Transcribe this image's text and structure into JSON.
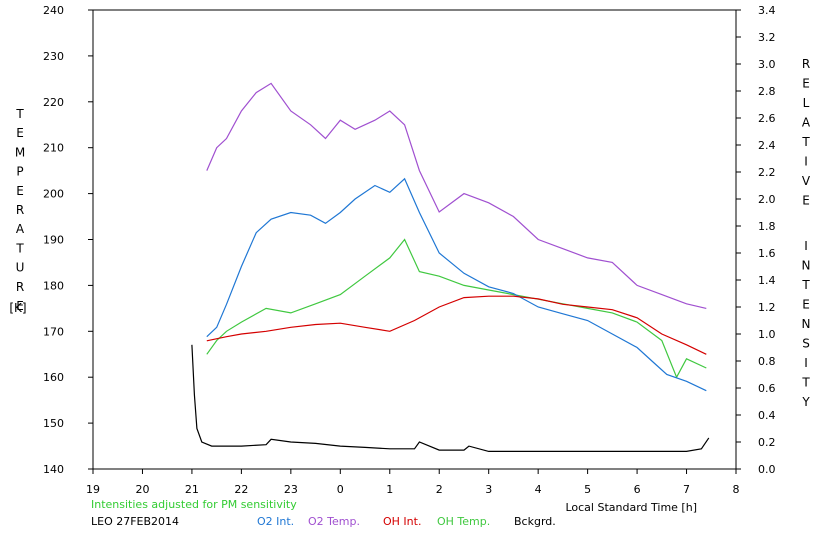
{
  "chart_data": {
    "type": "line",
    "xlabel": "Local Standard Time [h]",
    "ylabel_left": "TEMPERATURE",
    "ylabel_left_unit": "[K]",
    "ylabel_right": "RELATIVE INTENSITY",
    "x_ticks": [
      "19",
      "20",
      "21",
      "22",
      "23",
      "0",
      "1",
      "2",
      "3",
      "4",
      "5",
      "6",
      "7",
      "8"
    ],
    "xlim": [
      19,
      32
    ],
    "ylim_left": [
      140,
      240
    ],
    "y_ticks_left": [
      "140",
      "150",
      "160",
      "170",
      "180",
      "190",
      "200",
      "210",
      "220",
      "230",
      "240"
    ],
    "ylim_right": [
      0.0,
      3.4
    ],
    "y_ticks_right": [
      "0.0",
      "0.2",
      "0.4",
      "0.6",
      "0.8",
      "1.0",
      "1.2",
      "1.4",
      "1.6",
      "1.8",
      "2.0",
      "2.2",
      "2.4",
      "2.6",
      "2.8",
      "3.0",
      "3.2",
      "3.4"
    ],
    "note": "Intensities adjusted for PM sensitivity",
    "station_label": "LEO 27FEB2014",
    "grid": false,
    "legend_position": "bottom",
    "colors": {
      "o2_int": "#1f77d4",
      "o2_temp": "#a050d0",
      "oh_int": "#d40000",
      "oh_temp": "#40c840",
      "bckgrd": "#000000",
      "note": "#33cc33"
    },
    "series": [
      {
        "name": "O2 Int.",
        "axis": "right",
        "x": [
          21.3,
          21.5,
          21.7,
          22.0,
          22.3,
          22.6,
          23.0,
          23.4,
          23.7,
          24.0,
          24.3,
          24.7,
          25.0,
          25.3,
          25.6,
          26.0,
          26.5,
          27.0,
          27.5,
          28.0,
          28.5,
          29.0,
          29.5,
          30.0,
          30.3,
          30.6,
          31.0,
          31.4
        ],
        "values": [
          0.98,
          1.05,
          1.22,
          1.5,
          1.75,
          1.85,
          1.9,
          1.88,
          1.82,
          1.9,
          2.0,
          2.1,
          2.05,
          2.15,
          1.9,
          1.6,
          1.45,
          1.35,
          1.3,
          1.2,
          1.15,
          1.1,
          1.0,
          0.9,
          0.8,
          0.7,
          0.65,
          0.58
        ]
      },
      {
        "name": "O2 Temp.",
        "axis": "left",
        "x": [
          21.3,
          21.5,
          21.7,
          22.0,
          22.3,
          22.6,
          23.0,
          23.4,
          23.7,
          24.0,
          24.3,
          24.7,
          25.0,
          25.3,
          25.6,
          26.0,
          26.5,
          27.0,
          27.5,
          28.0,
          28.5,
          29.0,
          29.5,
          30.0,
          30.5,
          31.0,
          31.4
        ],
        "values": [
          205,
          210,
          212,
          218,
          222,
          224,
          218,
          215,
          212,
          216,
          214,
          216,
          218,
          215,
          205,
          196,
          200,
          198,
          195,
          190,
          188,
          186,
          185,
          180,
          178,
          176,
          175
        ]
      },
      {
        "name": "OH Int.",
        "axis": "right",
        "x": [
          21.3,
          21.7,
          22.0,
          22.5,
          23.0,
          23.5,
          24.0,
          24.5,
          25.0,
          25.5,
          26.0,
          26.5,
          27.0,
          27.5,
          28.0,
          28.5,
          29.0,
          29.5,
          30.0,
          30.5,
          31.0,
          31.4
        ],
        "values": [
          0.95,
          0.98,
          1.0,
          1.02,
          1.05,
          1.07,
          1.08,
          1.05,
          1.02,
          1.1,
          1.2,
          1.27,
          1.28,
          1.28,
          1.26,
          1.22,
          1.2,
          1.18,
          1.12,
          1.0,
          0.92,
          0.85
        ]
      },
      {
        "name": "OH Temp.",
        "axis": "left",
        "x": [
          21.3,
          21.5,
          21.7,
          22.0,
          22.5,
          23.0,
          23.5,
          24.0,
          24.5,
          25.0,
          25.3,
          25.6,
          26.0,
          26.5,
          27.0,
          27.5,
          28.0,
          28.5,
          29.0,
          29.5,
          30.0,
          30.5,
          30.8,
          31.0,
          31.4
        ],
        "values": [
          165,
          168,
          170,
          172,
          175,
          174,
          176,
          178,
          182,
          186,
          190,
          183,
          182,
          180,
          179,
          178,
          177,
          176,
          175,
          174,
          172,
          168,
          160,
          164,
          162
        ]
      },
      {
        "name": "Bckgrd.",
        "axis": "right",
        "x": [
          21.0,
          21.05,
          21.1,
          21.2,
          21.4,
          22.0,
          22.5,
          22.6,
          23.0,
          23.5,
          24.0,
          24.5,
          25.0,
          25.5,
          25.6,
          26.0,
          26.5,
          26.6,
          27.0,
          28.0,
          29.0,
          30.0,
          31.0,
          31.3,
          31.45
        ],
        "values": [
          0.92,
          0.55,
          0.3,
          0.2,
          0.17,
          0.17,
          0.18,
          0.22,
          0.2,
          0.19,
          0.17,
          0.16,
          0.15,
          0.15,
          0.2,
          0.14,
          0.14,
          0.17,
          0.13,
          0.13,
          0.13,
          0.13,
          0.13,
          0.15,
          0.23
        ]
      }
    ]
  }
}
